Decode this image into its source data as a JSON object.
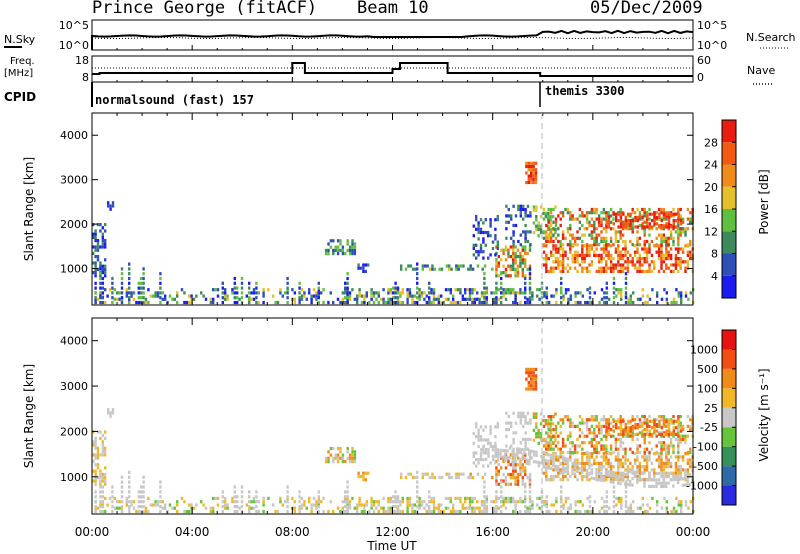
{
  "header": {
    "station": "Prince George (fitACF)",
    "beam": "Beam 10",
    "date": "05/Dec/2009"
  },
  "noise_panel": {
    "left_label": "N.Sky",
    "right_label": "N.Search",
    "left_ticks": [
      "10^5",
      "10^0"
    ],
    "right_ticks": [
      "10^5",
      "10^0"
    ]
  },
  "freq_panel": {
    "left_label_1": "Freq.",
    "left_label_2": "[MHz]",
    "right_label": "Nave",
    "left_ticks": [
      "18",
      "8"
    ],
    "right_ticks": [
      "60",
      "0"
    ]
  },
  "cpid_panel": {
    "label": "CPID",
    "segments": [
      "normalsound (fast) 157",
      "themis 3300"
    ]
  },
  "colors": {
    "power": [
      "#1c1cf0",
      "#2e4fb8",
      "#3e8a5c",
      "#5fbf3f",
      "#e6c02b",
      "#f08a18",
      "#f25a14",
      "#e81d10"
    ],
    "velocity": [
      "#2a2ae0",
      "#2f6aa8",
      "#35905a",
      "#66c43c",
      "#c7c7c7",
      "#f0b829",
      "#f08a18",
      "#f24d12",
      "#e81010"
    ]
  },
  "chart_data": [
    {
      "type": "heatmap",
      "parameter": "power",
      "ylabel": "Slant Range [km]",
      "x_range_hours": [
        0,
        24
      ],
      "ylim": [
        180,
        4500
      ],
      "y_ticks": [
        "1000",
        "2000",
        "3000",
        "4000"
      ],
      "colorbar_label": "Power [dB]",
      "colorbar_ticks": [
        "4",
        "8",
        "12",
        "16",
        "20",
        "24",
        "28"
      ]
    },
    {
      "type": "heatmap",
      "parameter": "velocity",
      "ylabel": "Slant Range [km]",
      "xlabel": "Time UT",
      "x_range_hours": [
        0,
        24
      ],
      "ylim": [
        180,
        4500
      ],
      "x_ticks": [
        "00:00",
        "04:00",
        "08:00",
        "12:00",
        "16:00",
        "20:00",
        "00:00"
      ],
      "y_ticks": [
        "1000",
        "2000",
        "3000",
        "4000"
      ],
      "colorbar_label": "Velocity [m s⁻¹]",
      "colorbar_ticks": [
        "1000",
        "500",
        "100",
        "25",
        "-25",
        "-100",
        "-500",
        "-1000"
      ]
    }
  ]
}
